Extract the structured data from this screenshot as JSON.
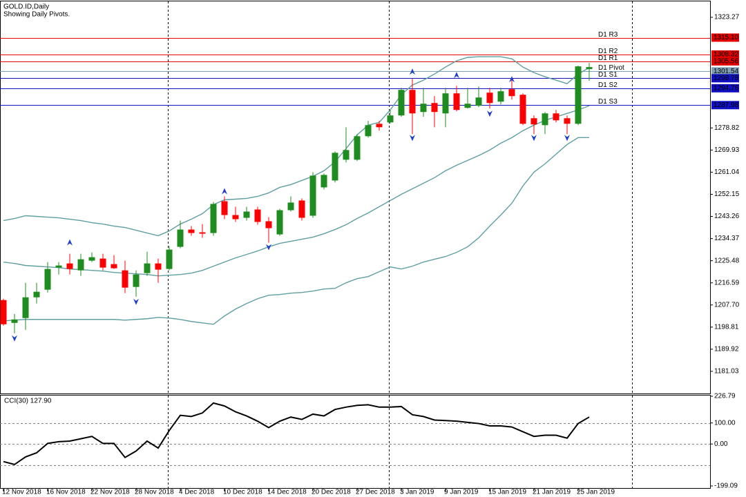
{
  "chart_data": [
    {
      "type": "candlestick",
      "title": "GOLD.ID,Daily",
      "subtitle": "Showing Daily Pivots.",
      "categories": [
        "12 Nov 2018",
        null,
        null,
        null,
        "16 Nov 2018",
        null,
        null,
        null,
        "22 Nov 2018",
        null,
        null,
        null,
        "28 Nov 2018",
        null,
        null,
        null,
        "4 Dec 2018",
        null,
        null,
        null,
        "10 Dec 2018",
        null,
        null,
        null,
        "14 Dec 2018",
        null,
        null,
        null,
        "20 Dec 2018",
        null,
        null,
        null,
        "27 Dec 2018",
        null,
        null,
        null,
        "3 Jan 2019",
        null,
        null,
        null,
        "9 Jan 2019",
        null,
        null,
        null,
        "15 Jan 2019",
        null,
        null,
        null,
        "21 Jan 2019",
        null,
        null,
        null,
        "25 Jan 2019",
        null
      ],
      "open": [
        1209.66,
        1200.49,
        1202.44,
        1210.77,
        1213.83,
        1222.71,
        1224.38,
        1221.6,
        1225.49,
        1226.33,
        1224.1,
        1221.6,
        1214.94,
        1220.49,
        1224.38,
        1222.16,
        1231.05,
        1237.99,
        1236.88,
        1236.6,
        1249.38,
        1243.82,
        1242.72,
        1246.05,
        1241.33,
        1236.05,
        1245.77,
        1249.66,
        1243.55,
        1254.94,
        1257.71,
        1266.05,
        1266.05,
        1275.49,
        1280.49,
        1281.05,
        1283.83,
        1294.1,
        1285.22,
        1288.83,
        1284.66,
        1292.72,
        1286.88,
        1287.72,
        1292.99,
        1289.38,
        1294.38,
        1292.16,
        1282.72,
        1279.94,
        1284.66,
        1282.72,
        1280.49,
        1302.44
      ],
      "high": [
        1210.22,
        1204.1,
        1216.6,
        1216.6,
        1224.94,
        1224.94,
        1228.27,
        1228.27,
        1228.83,
        1228.27,
        1227.72,
        1225.49,
        1221.6,
        1229.1,
        1226.33,
        1231.33,
        1241.6,
        1239.38,
        1240.2,
        1249.1,
        1251.33,
        1247.16,
        1247.16,
        1247.16,
        1242.99,
        1246.33,
        1251.33,
        1250.49,
        1261.05,
        1260.49,
        1269.38,
        1279.1,
        1276.33,
        1281.6,
        1281.6,
        1286.05,
        1294.94,
        1298.55,
        1294.94,
        1291.6,
        1294.94,
        1295.77,
        1294.94,
        1295.49,
        1294.94,
        1294.94,
        1298.55,
        1292.72,
        1283.83,
        1285.22,
        1286.05,
        1283.83,
        1303.83,
        1304.94
      ],
      "low": [
        1199.38,
        1196.32,
        1197.7,
        1208.27,
        1212.71,
        1219.94,
        1219.94,
        1219.38,
        1224.94,
        1221.6,
        1222.16,
        1212.44,
        1211.05,
        1219.38,
        1216.6,
        1221.6,
        1230.49,
        1235.49,
        1234.66,
        1235.49,
        1242.16,
        1241.05,
        1241.6,
        1239.94,
        1232.72,
        1235.49,
        1245.22,
        1241.6,
        1242.72,
        1254.1,
        1256.88,
        1264.94,
        1265.49,
        1274.94,
        1277.72,
        1280.49,
        1283.27,
        1276.33,
        1283.27,
        1279.1,
        1279.1,
        1285.49,
        1286.6,
        1287.16,
        1286.6,
        1288.27,
        1290.22,
        1279.94,
        1276.33,
        1276.33,
        1281.05,
        1276.33,
        1279.94,
        1297.72
      ],
      "close": [
        1199.94,
        1201.88,
        1210.77,
        1213.0,
        1222.16,
        1223.55,
        1222.16,
        1226.05,
        1226.88,
        1222.71,
        1222.44,
        1214.66,
        1219.94,
        1224.38,
        1221.88,
        1229.94,
        1237.99,
        1236.6,
        1236.33,
        1248.27,
        1243.82,
        1242.16,
        1245.22,
        1241.05,
        1238.55,
        1245.77,
        1248.83,
        1242.72,
        1259.66,
        1259.94,
        1268.83,
        1269.94,
        1275.49,
        1279.94,
        1279.1,
        1283.83,
        1294.1,
        1284.66,
        1288.55,
        1285.22,
        1292.72,
        1286.05,
        1288.55,
        1291.05,
        1288.83,
        1293.55,
        1291.6,
        1280.49,
        1280.22,
        1284.66,
        1281.88,
        1280.49,
        1303.55,
        1303.27
      ],
      "up_color": "#1e8c1e",
      "down_color": "#ff0000",
      "bands": {
        "color": "#5f9ea0",
        "upper": [
          1241.6,
          1242.43,
          1243.55,
          1243.27,
          1242.99,
          1242.71,
          1242.16,
          1241.6,
          1240.77,
          1240.21,
          1239.38,
          1238.82,
          1237.71,
          1236.6,
          1235.49,
          1237.43,
          1240.21,
          1242.16,
          1244.38,
          1247.99,
          1249.93,
          1250.21,
          1250.49,
          1251.32,
          1252.71,
          1254.93,
          1256.05,
          1257.71,
          1259.38,
          1261.6,
          1265.21,
          1270.49,
          1276.05,
          1279.93,
          1281.05,
          1286.05,
          1292.16,
          1296.05,
          1297.99,
          1300.49,
          1303.27,
          1305.77,
          1307.16,
          1307.43,
          1307.43,
          1307.43,
          1306.6,
          1303.27,
          1301.05,
          1299.38,
          1297.99,
          1296.6,
          1300.49,
          1302.99
        ],
        "middle": [
          1224.93,
          1224.38,
          1223.55,
          1223.27,
          1222.99,
          1222.71,
          1222.16,
          1221.88,
          1221.6,
          1221.32,
          1220.77,
          1220.49,
          1220.21,
          1219.93,
          1219.38,
          1219.66,
          1219.93,
          1220.49,
          1221.6,
          1223.27,
          1224.93,
          1226.6,
          1227.99,
          1229.38,
          1231.05,
          1232.43,
          1233.27,
          1234.1,
          1234.93,
          1236.32,
          1237.99,
          1239.93,
          1242.43,
          1244.66,
          1247.16,
          1249.66,
          1252.16,
          1254.38,
          1256.6,
          1258.82,
          1261.6,
          1263.82,
          1265.77,
          1267.71,
          1269.93,
          1272.71,
          1274.93,
          1277.71,
          1279.93,
          1281.88,
          1283.27,
          1284.66,
          1286.05,
          1287.71
        ],
        "lower": [
          1201.32,
          1201.6,
          1201.88,
          1201.88,
          1201.88,
          1201.88,
          1201.88,
          1201.88,
          1201.88,
          1201.88,
          1201.88,
          1201.6,
          1201.88,
          1202.16,
          1202.71,
          1202.43,
          1201.88,
          1201.05,
          1200.49,
          1199.93,
          1203.27,
          1206.05,
          1208.27,
          1210.21,
          1211.6,
          1211.88,
          1212.43,
          1212.71,
          1213.27,
          1214.1,
          1214.38,
          1216.6,
          1218.27,
          1219.1,
          1221.05,
          1222.99,
          1222.16,
          1223.27,
          1224.93,
          1226.05,
          1227.16,
          1228.82,
          1231.05,
          1234.66,
          1239.38,
          1243.82,
          1248.55,
          1255.49,
          1261.05,
          1264.38,
          1268.27,
          1272.16,
          1274.93,
          1274.93
        ]
      },
      "fractal_color": "#2040c0",
      "fractals_up": [
        null,
        null,
        null,
        null,
        null,
        null,
        1232.71,
        null,
        null,
        null,
        null,
        null,
        null,
        null,
        null,
        null,
        null,
        null,
        null,
        null,
        1253.27,
        null,
        null,
        null,
        null,
        null,
        null,
        null,
        null,
        null,
        null,
        null,
        null,
        null,
        null,
        null,
        null,
        1301.32,
        null,
        null,
        null,
        1299.93,
        null,
        null,
        null,
        null,
        1298.27,
        null,
        null,
        null,
        null,
        null,
        null,
        null
      ],
      "fractals_down": [
        null,
        1194.38,
        null,
        null,
        null,
        null,
        null,
        null,
        null,
        null,
        null,
        null,
        1209.1,
        null,
        null,
        null,
        null,
        null,
        null,
        null,
        null,
        null,
        null,
        null,
        1231.05,
        null,
        null,
        null,
        null,
        null,
        null,
        null,
        null,
        null,
        null,
        null,
        null,
        1274.93,
        null,
        null,
        null,
        null,
        null,
        null,
        1284.66,
        null,
        null,
        null,
        1274.93,
        null,
        null,
        1274.93,
        null,
        null
      ],
      "pivots": {
        "labels": [
          "D1 R3",
          "D1 R2",
          "D1 R1",
          "D1 Pivot",
          "D1 S1",
          "D1 S2",
          "D1 S3"
        ],
        "values": [
          1315.1,
          1308.32,
          1305.56,
          1301.54,
          1298.78,
          1294.76,
          1287.98
        ],
        "value_labels": [
          "1315.10",
          "1308.32",
          "1305.56",
          "1301.54",
          "1298.78",
          "1294.76",
          "1287.98"
        ],
        "colors": [
          "#e00000",
          "#e00000",
          "#e00000",
          "#7f9fb5",
          "#1010c0",
          "#1010c0",
          "#1010c0"
        ]
      },
      "ylim": [
        1172.14,
        1329.66
      ],
      "yticks": [
        1323.27,
        1278.82,
        1269.93,
        1261.04,
        1252.15,
        1243.26,
        1234.37,
        1225.48,
        1216.59,
        {
          "value": 1207.7,
          "label": "1207.70"
        },
        1198.81,
        1189.92,
        1181.03
      ]
    },
    {
      "type": "line",
      "title": "CCI(30) 127.90",
      "color": "#000000",
      "values": [
        -83.3,
        -97.2,
        -61.1,
        -41.7,
        2.8,
        11.1,
        13.9,
        25,
        36.1,
        2.8,
        2.8,
        -63.9,
        -33.3,
        13.9,
        -19.4,
        63.9,
        136.1,
        130.6,
        147.2,
        194.4,
        180.6,
        152.8,
        133.3,
        108.3,
        77.8,
        108.3,
        127.8,
        116.7,
        141.7,
        133.3,
        163.9,
        175,
        183.3,
        186.1,
        175,
        175,
        177.8,
        138.9,
        130.6,
        113.9,
        111.1,
        108.3,
        102.8,
        97.2,
        86.1,
        86.1,
        80.6,
        58.3,
        36.1,
        41.7,
        41.7,
        27.8,
        97.2,
        127.9
      ],
      "levels": [
        100,
        0,
        -100
      ],
      "ylim": [
        -199.09,
        226.79
      ],
      "yticks": [
        226.79,
        {
          "value": 100,
          "label": "100.00"
        },
        {
          "value": 0,
          "label": "0.00"
        },
        -199.09
      ]
    }
  ]
}
